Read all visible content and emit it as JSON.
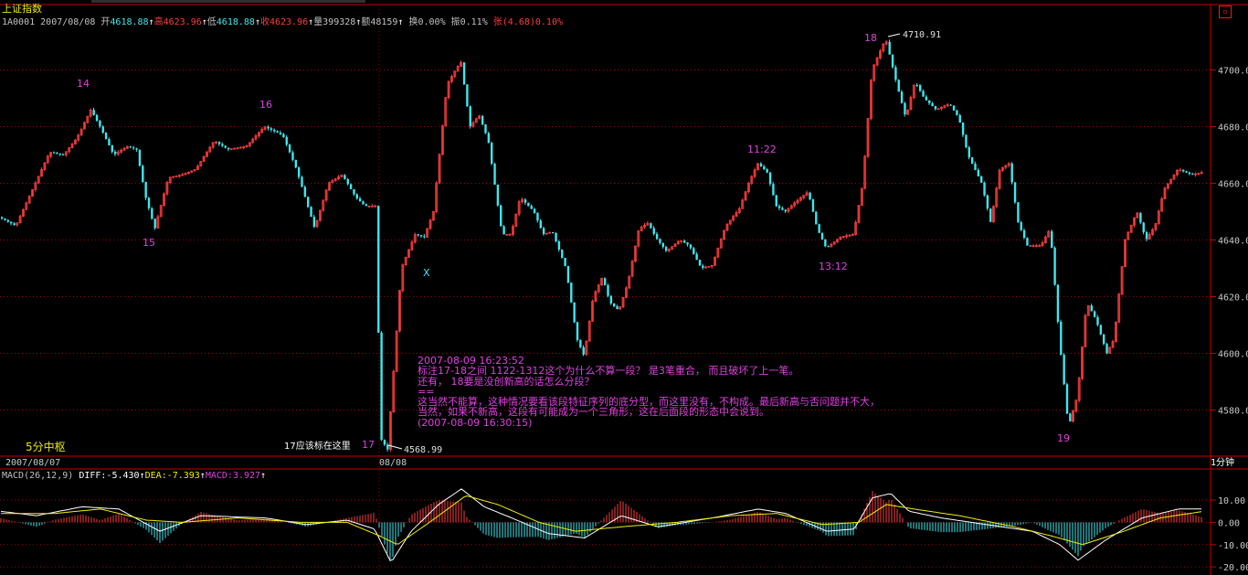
{
  "window": {
    "title": "上证指数",
    "corner_icon": "restore-window-icon"
  },
  "info_bar": {
    "code": "1A0001",
    "date": "2007/08/08",
    "open_label": "开",
    "open": "4618.88",
    "high_label": "高",
    "high": "4623.96",
    "low_label": "低",
    "low": "4618.88",
    "close_label": "收",
    "close": "4623.96",
    "volume_label": "量",
    "volume": "399328",
    "amount_label": "额",
    "amount": "48159",
    "turnover_label": "换",
    "turnover": "0.00%",
    "amplitude_label": "振",
    "amplitude": "0.11%",
    "change_label": "张",
    "change": "(4.68)0.10%"
  },
  "price_axis": {
    "ticks": [
      {
        "value": 4700,
        "label": "4700.0"
      },
      {
        "value": 4680,
        "label": "4680.0"
      },
      {
        "value": 4660,
        "label": "4660.0"
      },
      {
        "value": 4640,
        "label": "4640.0"
      },
      {
        "value": 4620,
        "label": "4620.0"
      },
      {
        "value": 4600,
        "label": "4600.0"
      },
      {
        "value": 4580,
        "label": "4580.0"
      }
    ]
  },
  "macd_axis": {
    "ticks": [
      {
        "value": 10,
        "label": "10.00"
      },
      {
        "value": 0,
        "label": "0.00"
      },
      {
        "value": -10,
        "label": "-10.00"
      },
      {
        "value": -20,
        "label": "-20.00"
      }
    ]
  },
  "macd_bar": {
    "name": "MACD(26,12,9)",
    "diff_label": "DIFF:",
    "diff": "-5.430",
    "dea_label": "DEA:",
    "dea": "-7.393",
    "macd_label": "MACD:",
    "macd": "3.927"
  },
  "time_bar": {
    "left_date": "2007/08/07",
    "mid_date": "08/08",
    "period": "1分钟"
  },
  "annotations": {
    "n14": "14",
    "n15": "15",
    "n16": "16",
    "n17": "17",
    "n18": "18",
    "n19": "19",
    "t1122": "11:22",
    "t1312": "13:12",
    "x_mark": "X",
    "zs_label": "5分中枢",
    "note17": "17应该标在这里",
    "high_price": "4710.91",
    "low_price": "4568.99"
  },
  "note": {
    "lines": [
      "2007-08-09 16:23:52",
      "标注17-18之间 1122-1312这个为什么不算一段？ 是3笔重合， 而且破坏了上一笔。",
      "还有， 18要是没创新高的话怎么分段？",
      "==",
      "这当然不能算，这种情况要看该段特征序列的底分型，而这里没有，不构成。最后新高与否问题并不大，",
      "当然，如果不新高，这段有可能成为一个三角形，这在后面段的形态中会说到。",
      "(2007-08-09 16:30:15)"
    ]
  },
  "colors": {
    "up": "#ff3c3c",
    "down": "#3ce8f0",
    "grid": "#a00000",
    "axis_border": "#c00000",
    "label_magenta": "#e040e0",
    "diff_line": "#ffffff",
    "dea_line": "#f0f000",
    "title_yellow": "#e8e800"
  },
  "chart_data": {
    "type": "candlestick",
    "ylim": [
      4565,
      4715
    ],
    "macd_ylim": [
      -22,
      17
    ],
    "path_points": [
      [
        0,
        4648
      ],
      [
        18,
        4645
      ],
      [
        55,
        4671
      ],
      [
        70,
        4670
      ],
      [
        85,
        4676
      ],
      [
        100,
        4686
      ],
      [
        110,
        4680
      ],
      [
        125,
        4670
      ],
      [
        140,
        4673
      ],
      [
        150,
        4672
      ],
      [
        160,
        4655
      ],
      [
        170,
        4644
      ],
      [
        185,
        4662
      ],
      [
        200,
        4663
      ],
      [
        215,
        4665
      ],
      [
        235,
        4675
      ],
      [
        250,
        4672
      ],
      [
        270,
        4673
      ],
      [
        290,
        4680
      ],
      [
        310,
        4677
      ],
      [
        325,
        4665
      ],
      [
        345,
        4644
      ],
      [
        360,
        4660
      ],
      [
        375,
        4663
      ],
      [
        390,
        4655
      ],
      [
        400,
        4652
      ],
      [
        412,
        4652
      ],
      [
        417,
        4570
      ],
      [
        425,
        4566
      ],
      [
        440,
        4630
      ],
      [
        455,
        4642
      ],
      [
        465,
        4641
      ],
      [
        475,
        4650
      ],
      [
        490,
        4695
      ],
      [
        505,
        4703
      ],
      [
        515,
        4680
      ],
      [
        525,
        4684
      ],
      [
        535,
        4675
      ],
      [
        550,
        4642
      ],
      [
        560,
        4642
      ],
      [
        570,
        4655
      ],
      [
        585,
        4650
      ],
      [
        595,
        4642
      ],
      [
        605,
        4643
      ],
      [
        620,
        4630
      ],
      [
        632,
        4605
      ],
      [
        640,
        4599
      ],
      [
        650,
        4620
      ],
      [
        660,
        4627
      ],
      [
        668,
        4618
      ],
      [
        678,
        4615
      ],
      [
        688,
        4625
      ],
      [
        700,
        4644
      ],
      [
        710,
        4646
      ],
      [
        718,
        4641
      ],
      [
        730,
        4636
      ],
      [
        745,
        4640
      ],
      [
        755,
        4638
      ],
      [
        768,
        4630
      ],
      [
        780,
        4631
      ],
      [
        795,
        4645
      ],
      [
        810,
        4651
      ],
      [
        820,
        4660
      ],
      [
        830,
        4667
      ],
      [
        840,
        4664
      ],
      [
        850,
        4652
      ],
      [
        860,
        4650
      ],
      [
        870,
        4653
      ],
      [
        885,
        4657
      ],
      [
        895,
        4644
      ],
      [
        905,
        4637
      ],
      [
        920,
        4641
      ],
      [
        935,
        4642
      ],
      [
        945,
        4660
      ],
      [
        955,
        4700
      ],
      [
        970,
        4711
      ],
      [
        982,
        4695
      ],
      [
        992,
        4683
      ],
      [
        1002,
        4696
      ],
      [
        1012,
        4690
      ],
      [
        1025,
        4686
      ],
      [
        1040,
        4688
      ],
      [
        1050,
        4683
      ],
      [
        1060,
        4670
      ],
      [
        1075,
        4660
      ],
      [
        1085,
        4646
      ],
      [
        1095,
        4665
      ],
      [
        1105,
        4667
      ],
      [
        1115,
        4646
      ],
      [
        1125,
        4638
      ],
      [
        1140,
        4638
      ],
      [
        1150,
        4644
      ],
      [
        1160,
        4605
      ],
      [
        1170,
        4574
      ],
      [
        1180,
        4585
      ],
      [
        1190,
        4618
      ],
      [
        1200,
        4612
      ],
      [
        1212,
        4600
      ],
      [
        1220,
        4605
      ],
      [
        1232,
        4640
      ],
      [
        1245,
        4650
      ],
      [
        1255,
        4640
      ],
      [
        1265,
        4645
      ],
      [
        1275,
        4658
      ],
      [
        1290,
        4665
      ],
      [
        1305,
        4663
      ],
      [
        1318,
        4664
      ]
    ],
    "diff_points": [
      [
        0,
        5
      ],
      [
        40,
        3
      ],
      [
        90,
        7
      ],
      [
        130,
        6
      ],
      [
        175,
        -4
      ],
      [
        220,
        3
      ],
      [
        290,
        2
      ],
      [
        335,
        -1
      ],
      [
        380,
        1
      ],
      [
        410,
        -3
      ],
      [
        428,
        -18
      ],
      [
        450,
        -4
      ],
      [
        480,
        8
      ],
      [
        505,
        15
      ],
      [
        530,
        7
      ],
      [
        560,
        2
      ],
      [
        600,
        -5
      ],
      [
        640,
        -7
      ],
      [
        680,
        3
      ],
      [
        720,
        -2
      ],
      [
        780,
        2
      ],
      [
        830,
        6
      ],
      [
        860,
        4
      ],
      [
        905,
        -4
      ],
      [
        935,
        -3
      ],
      [
        955,
        11
      ],
      [
        975,
        13
      ],
      [
        995,
        5
      ],
      [
        1030,
        2
      ],
      [
        1080,
        -1
      ],
      [
        1130,
        -4
      ],
      [
        1160,
        -10
      ],
      [
        1180,
        -17
      ],
      [
        1210,
        -8
      ],
      [
        1250,
        2
      ],
      [
        1290,
        6
      ],
      [
        1318,
        6
      ]
    ],
    "dea_points": [
      [
        0,
        4
      ],
      [
        60,
        4
      ],
      [
        110,
        6
      ],
      [
        160,
        1
      ],
      [
        200,
        0
      ],
      [
        260,
        2
      ],
      [
        330,
        0
      ],
      [
        380,
        0
      ],
      [
        415,
        -6
      ],
      [
        435,
        -10
      ],
      [
        470,
        0
      ],
      [
        510,
        12
      ],
      [
        545,
        8
      ],
      [
        590,
        0
      ],
      [
        630,
        -4
      ],
      [
        680,
        -2
      ],
      [
        740,
        0
      ],
      [
        800,
        3
      ],
      [
        850,
        4
      ],
      [
        900,
        -1
      ],
      [
        940,
        0
      ],
      [
        970,
        8
      ],
      [
        1000,
        6
      ],
      [
        1050,
        3
      ],
      [
        1110,
        -2
      ],
      [
        1150,
        -6
      ],
      [
        1185,
        -10
      ],
      [
        1230,
        -4
      ],
      [
        1270,
        2
      ],
      [
        1318,
        5
      ]
    ],
    "labels": {
      "diff": "DIFF",
      "dea": "DEA",
      "macd": "MACD"
    }
  }
}
